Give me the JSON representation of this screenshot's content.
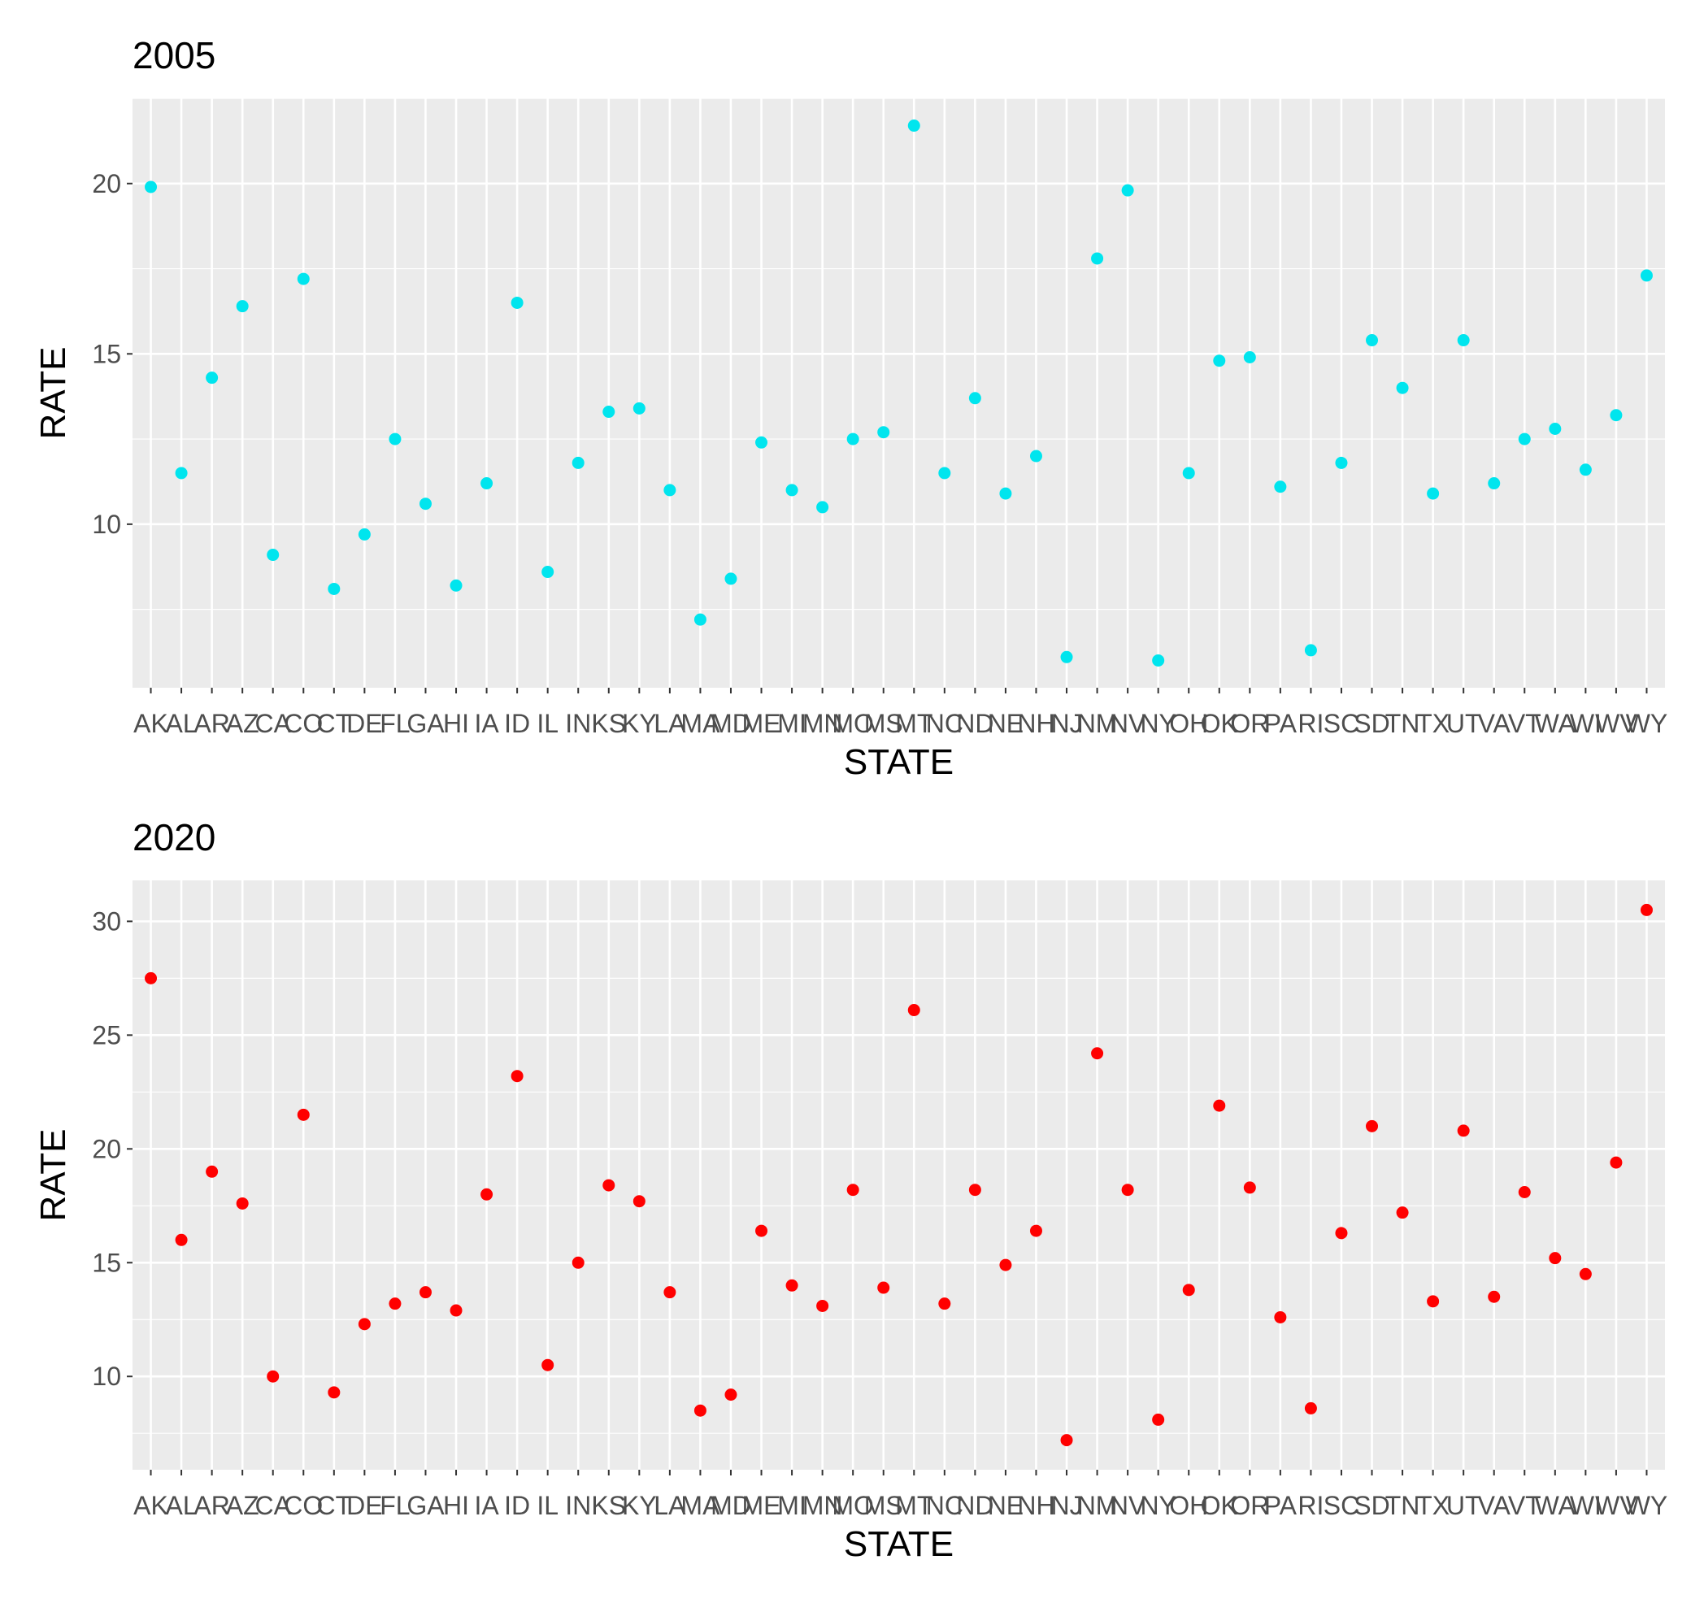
{
  "chart_data": [
    {
      "type": "scatter",
      "title": "2005",
      "xlabel": "STATE",
      "ylabel": "RATE",
      "color": "#00e5ee",
      "panel_background": "#ebebeb",
      "grid": true,
      "categories": [
        "AK",
        "AL",
        "AR",
        "AZ",
        "CA",
        "CO",
        "CT",
        "DE",
        "FL",
        "GA",
        "HI",
        "IA",
        "ID",
        "IL",
        "IN",
        "KS",
        "KY",
        "LA",
        "MA",
        "MD",
        "ME",
        "MI",
        "MN",
        "MO",
        "MS",
        "MT",
        "NC",
        "ND",
        "NE",
        "NH",
        "NJ",
        "NM",
        "NV",
        "NY",
        "OH",
        "OK",
        "OR",
        "PA",
        "RI",
        "SC",
        "SD",
        "TN",
        "TX",
        "UT",
        "VA",
        "VT",
        "WA",
        "WI",
        "WV",
        "WY"
      ],
      "values": [
        19.9,
        11.5,
        14.3,
        16.4,
        9.1,
        17.2,
        8.1,
        9.7,
        12.5,
        10.6,
        8.2,
        11.2,
        16.5,
        8.6,
        11.8,
        13.3,
        13.4,
        11.0,
        7.2,
        8.4,
        12.4,
        11.0,
        10.5,
        12.5,
        12.7,
        21.7,
        11.5,
        13.7,
        10.9,
        12.0,
        6.1,
        17.8,
        19.8,
        6.0,
        11.5,
        14.8,
        14.9,
        11.1,
        6.3,
        11.8,
        15.4,
        14.0,
        10.9,
        15.4,
        11.2,
        12.5,
        12.8,
        11.6,
        13.2,
        17.3
      ],
      "yticks": [
        10,
        15,
        20
      ],
      "ylim": [
        5.2,
        22.5
      ]
    },
    {
      "type": "scatter",
      "title": "2020",
      "xlabel": "STATE",
      "ylabel": "RATE",
      "color": "#ff0000",
      "panel_background": "#ebebeb",
      "grid": true,
      "categories": [
        "AK",
        "AL",
        "AR",
        "AZ",
        "CA",
        "CO",
        "CT",
        "DE",
        "FL",
        "GA",
        "HI",
        "IA",
        "ID",
        "IL",
        "IN",
        "KS",
        "KY",
        "LA",
        "MA",
        "MD",
        "ME",
        "MI",
        "MN",
        "MO",
        "MS",
        "MT",
        "NC",
        "ND",
        "NE",
        "NH",
        "NJ",
        "NM",
        "NV",
        "NY",
        "OH",
        "OK",
        "OR",
        "PA",
        "RI",
        "SC",
        "SD",
        "TN",
        "TX",
        "UT",
        "VA",
        "VT",
        "WA",
        "WI",
        "WV",
        "WY"
      ],
      "values": [
        27.5,
        16.0,
        19.0,
        17.6,
        10.0,
        21.5,
        9.3,
        12.3,
        13.2,
        13.7,
        12.9,
        18.0,
        23.2,
        10.5,
        15.0,
        18.4,
        17.7,
        13.7,
        8.5,
        9.2,
        16.4,
        14.0,
        13.1,
        18.2,
        13.9,
        26.1,
        13.2,
        18.2,
        14.9,
        16.4,
        7.2,
        24.2,
        18.2,
        8.1,
        13.8,
        21.9,
        18.3,
        12.6,
        8.6,
        16.3,
        21.0,
        17.2,
        13.3,
        20.8,
        13.5,
        18.1,
        15.2,
        14.5,
        19.4,
        30.5
      ],
      "yticks": [
        10,
        15,
        20,
        25,
        30
      ],
      "ylim": [
        5.9,
        31.8
      ]
    }
  ]
}
